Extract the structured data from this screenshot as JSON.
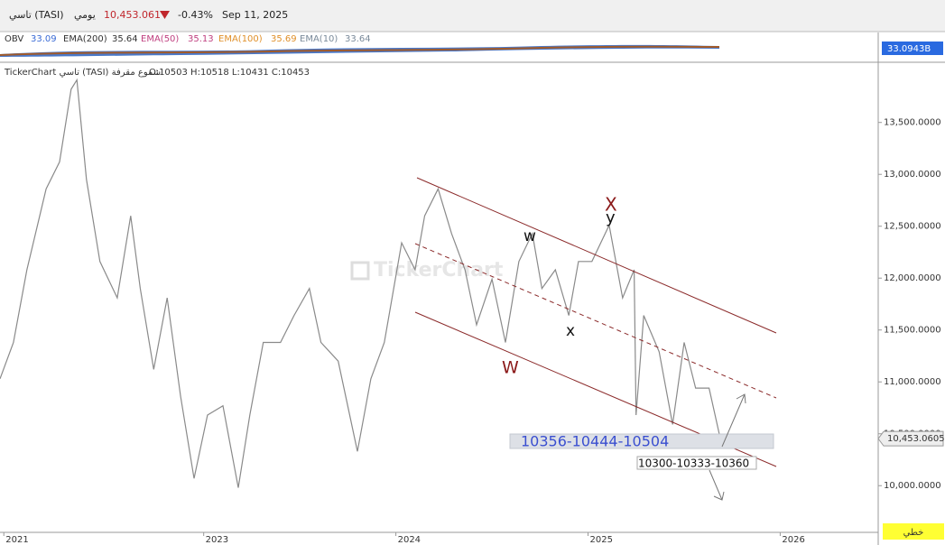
{
  "header": {
    "symbol": "تاسي (TASI)",
    "period": "يومي",
    "price": "10,453.061",
    "change": "-0.43%",
    "date": "Sep 11, 2025"
  },
  "indicator": {
    "obv_label": "OBV",
    "obv_value": "33.09",
    "ema200_label": "EMA(200)",
    "ema200_value": "35.64",
    "ema50_label": "EMA(50)",
    "ema50_value": "35.13",
    "ema100_label": "EMA(100)",
    "ema100_value": "35.69",
    "ema10_label": "EMA(10)",
    "ema10_value": "33.64",
    "axis_tag": "33.0943B"
  },
  "chart_data": {
    "type": "line",
    "legend_title": "TickerChart تاسي (TASI) شموع مقرفة",
    "ohlc_text": "O:10503 H:10518 L:10431 C:10453",
    "watermark": "TickerChart",
    "style_button": "خطي",
    "x": [
      2021.94,
      2022.01,
      2022.08,
      2022.18,
      2022.25,
      2022.31,
      2022.34,
      2022.39,
      2022.46,
      2022.55,
      2022.62,
      2022.67,
      2022.74,
      2022.81,
      2022.88,
      2022.95,
      2023.02,
      2023.1,
      2023.18,
      2023.24,
      2023.31,
      2023.4,
      2023.47,
      2023.55,
      2023.61,
      2023.7,
      2023.8,
      2023.87,
      2023.94,
      2024.03,
      2024.1,
      2024.15,
      2024.22,
      2024.29,
      2024.36,
      2024.42,
      2024.5,
      2024.57,
      2024.64,
      2024.71,
      2024.76,
      2024.83,
      2024.9,
      2024.95,
      2025.02,
      2025.11,
      2025.18,
      2025.24,
      2025.25,
      2025.29,
      2025.37,
      2025.44,
      2025.5,
      2025.56,
      2025.63,
      2025.69
    ],
    "values": [
      11030,
      11380,
      12080,
      12860,
      13120,
      13820,
      13910,
      12950,
      12160,
      11810,
      12600,
      11900,
      11120,
      11810,
      10860,
      10070,
      10680,
      10770,
      9980,
      10680,
      11380,
      11380,
      11640,
      11900,
      11380,
      11200,
      10330,
      11030,
      11380,
      12340,
      12080,
      12600,
      12860,
      12430,
      12080,
      11550,
      11990,
      11380,
      12160,
      12430,
      11900,
      12080,
      11640,
      12160,
      12160,
      12510,
      11810,
      12080,
      10680,
      11640,
      11290,
      10590,
      11380,
      10940,
      10940,
      10440
    ],
    "color": "#8a8a8a",
    "xlim": [
      2021.94,
      2026.51
    ],
    "xticks": [
      {
        "value": 2021.96,
        "label": "2021"
      },
      2023,
      2024,
      2025,
      2026
    ],
    "ylim": [
      9550,
      14080
    ],
    "yticks": [
      {
        "value": 10000,
        "label": "10,000.0000"
      },
      {
        "value": 10500,
        "label": "10,500.0000"
      },
      {
        "value": 11000,
        "label": "11,000.0000"
      },
      {
        "value": 11500,
        "label": "11,500.0000"
      },
      {
        "value": 12000,
        "label": "12,000.0000"
      },
      {
        "value": 12500,
        "label": "12,500.0000"
      },
      {
        "value": 13000,
        "label": "13,000.0000"
      },
      {
        "value": 13500,
        "label": "13,500.0000"
      }
    ],
    "grid": false,
    "last_price": {
      "value": 10453.0605,
      "label": "10,453.0605"
    },
    "annotations": [
      "X",
      "y",
      "w",
      "x",
      "W",
      "10356-10444-10504",
      "10300-10333-10360"
    ]
  }
}
